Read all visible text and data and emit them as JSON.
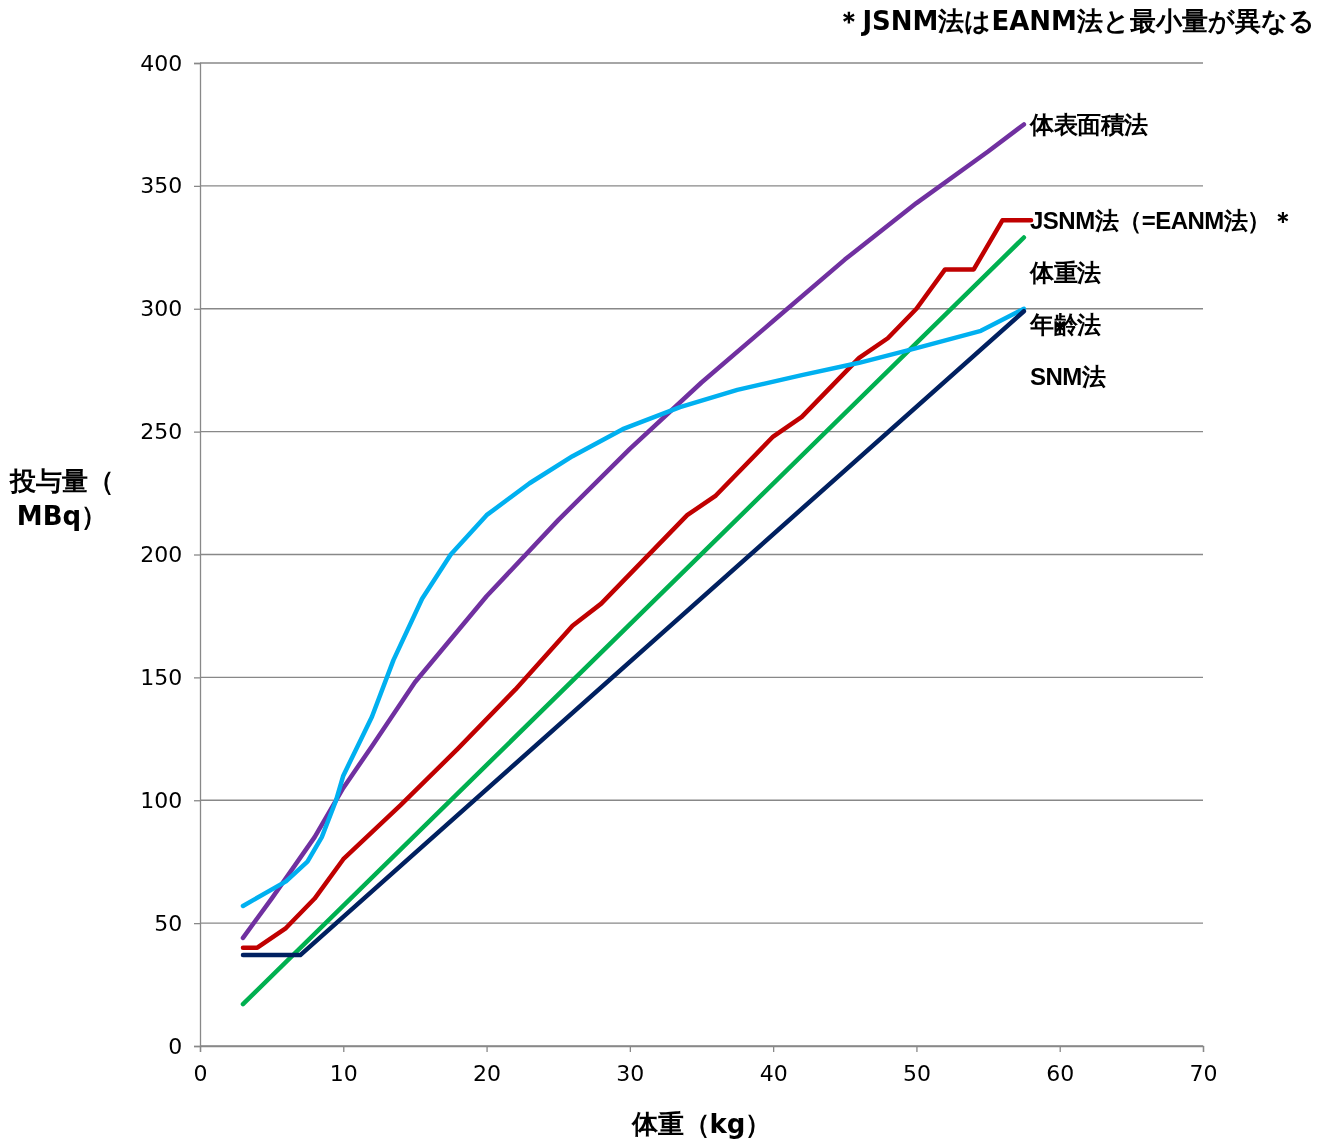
{
  "chart_data": {
    "type": "line",
    "xlabel": "体重（kg）",
    "ylabel": "投与量（MBq）",
    "annotations": [
      "＊JSNM法はEANM法と最小量が異なる"
    ],
    "xlim": [
      0,
      70
    ],
    "xticks": [
      0,
      10,
      20,
      30,
      40,
      50,
      60,
      70
    ],
    "ylim": [
      0,
      400
    ],
    "yticks": [
      0,
      50,
      100,
      150,
      200,
      250,
      300,
      350,
      400
    ],
    "grid": "y",
    "legend": false,
    "marker": "none",
    "line_style": "solid",
    "series": [
      {
        "name": "体表面積法",
        "color": "#7030a0",
        "x": [
          3,
          5,
          8,
          10,
          12,
          15,
          20,
          25,
          30,
          35,
          40,
          45,
          50,
          55,
          57.5
        ],
        "values": [
          44,
          60,
          85,
          105,
          122,
          148,
          183,
          214,
          243,
          270,
          295,
          320,
          343,
          364,
          375
        ]
      },
      {
        "name": "JSNM法（=EANM法）＊",
        "color": "#c00000",
        "x": [
          3,
          4,
          6,
          8,
          10,
          14,
          18,
          22,
          26,
          28,
          34,
          36,
          40,
          42,
          46,
          48,
          50,
          52,
          54,
          56,
          58
        ],
        "values": [
          40,
          40,
          48,
          60,
          76,
          98,
          121,
          145,
          171,
          180,
          216,
          224,
          248,
          256,
          280,
          288,
          300,
          316,
          316,
          336,
          336
        ]
      },
      {
        "name": "体重法",
        "color": "#00b050",
        "x": [
          3,
          57.5
        ],
        "values": [
          17,
          329
        ]
      },
      {
        "name": "年齢法",
        "color": "#00b0f0",
        "x": [
          3,
          6,
          7.5,
          8.5,
          9.5,
          10,
          11,
          12,
          13.5,
          15.5,
          17.5,
          20,
          23,
          26,
          29.5,
          33.5,
          37.5,
          42,
          46,
          50,
          54.5,
          57.5
        ],
        "values": [
          57,
          67,
          75,
          85,
          100,
          110,
          122,
          134,
          157,
          182,
          200,
          216,
          229,
          240,
          251,
          260,
          267,
          273,
          278,
          284,
          291,
          300
        ]
      },
      {
        "name": "SNM法",
        "color": "#002060",
        "x": [
          3,
          7,
          57.5
        ],
        "values": [
          37,
          37,
          299
        ]
      }
    ]
  }
}
